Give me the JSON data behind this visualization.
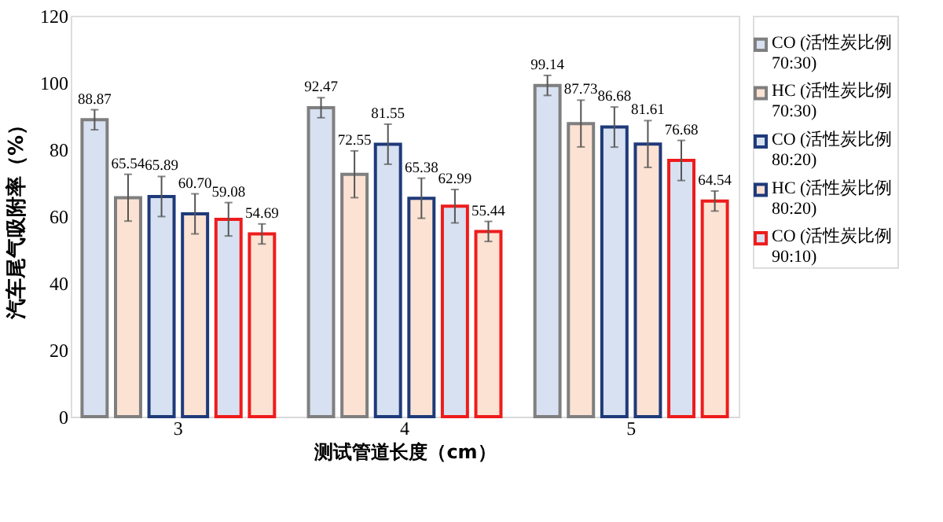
{
  "chart_data": {
    "type": "bar",
    "xlabel": "测试管道长度（cm）",
    "ylabel": "汽车尾气吸附率（%）",
    "categories": [
      "3",
      "4",
      "5"
    ],
    "ylim": [
      0,
      120
    ],
    "yticks": [
      0,
      20,
      40,
      60,
      80,
      100,
      120
    ],
    "grid": false,
    "legend": "right",
    "series": [
      {
        "name": "CO (活性炭比例70:30)",
        "color": "#7f7f7f",
        "values": [
          88.87,
          92.47,
          99.14
        ],
        "value_labels": [
          "88.87",
          "92.47",
          "99.14"
        ],
        "errors": [
          3,
          3,
          3
        ]
      },
      {
        "name": "HC (活性炭比例70:30)",
        "color": "#7f7f7f",
        "values": [
          65.54,
          72.55,
          87.73
        ],
        "value_labels": [
          "65.54",
          "72.55",
          "87.73"
        ],
        "errors": [
          7,
          7,
          7
        ]
      },
      {
        "name": "CO (活性炭比例80:20)",
        "color": "#1f3a7a",
        "values": [
          65.89,
          81.55,
          86.68
        ],
        "value_labels": [
          "65.89",
          "81.55",
          "86.68"
        ],
        "errors": [
          6,
          6,
          6
        ]
      },
      {
        "name": "HC (活性炭比例80:20)",
        "color": "#1f3a7a",
        "values": [
          60.7,
          65.38,
          81.61
        ],
        "value_labels": [
          "60.70",
          "65.38",
          "81.61"
        ],
        "errors": [
          6,
          6,
          7
        ]
      },
      {
        "name": "CO (活性炭比例90:10)",
        "color": "#ee1c1c",
        "values": [
          59.08,
          62.99,
          76.68
        ],
        "value_labels": [
          "59.08",
          "62.99",
          "76.68"
        ],
        "errors": [
          5,
          5,
          6
        ]
      },
      {
        "color": "#ee1c1c",
        "values": [
          54.69,
          55.44,
          64.54
        ],
        "value_labels": [
          "54.69",
          "55.44",
          "64.54"
        ],
        "errors": [
          3,
          3,
          3
        ]
      }
    ]
  }
}
